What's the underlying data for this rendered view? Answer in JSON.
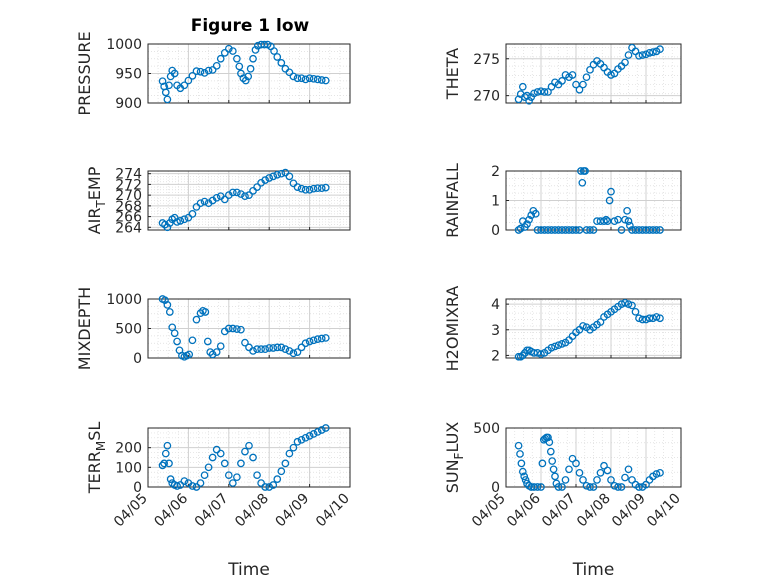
{
  "figure": {
    "title": "Figure 1 low"
  },
  "colors": {
    "marker": "#0072BD",
    "grid": "#dcdcdc",
    "axis": "#262626"
  },
  "chart_data": [
    {
      "id": "pressure",
      "type": "scatter",
      "title": "Figure 1 low",
      "ylabel": "PRESSURE",
      "ylabel_parts": [
        {
          "t": "PRESSURE"
        }
      ],
      "xlabel": "",
      "xlim": [
        0,
        5
      ],
      "ylim": [
        900,
        1000
      ],
      "yticks": [
        900,
        950,
        1000
      ],
      "ytick_labels": [
        "900",
        "950",
        "1000"
      ],
      "xtick_labels": [],
      "grid": true,
      "x": [
        0.36,
        0.4,
        0.44,
        0.48,
        0.52,
        0.56,
        0.6,
        0.66,
        0.72,
        0.8,
        0.9,
        1.0,
        1.1,
        1.2,
        1.3,
        1.4,
        1.5,
        1.6,
        1.7,
        1.8,
        1.9,
        2.0,
        2.1,
        2.2,
        2.26,
        2.3,
        2.36,
        2.42,
        2.48,
        2.54,
        2.6,
        2.66,
        2.72,
        2.8,
        2.88,
        2.96,
        3.04,
        3.12,
        3.2,
        3.3,
        3.4,
        3.5,
        3.6,
        3.7,
        3.8,
        3.9,
        4.0,
        4.1,
        4.2,
        4.3,
        4.4
      ],
      "y": [
        937,
        928,
        918,
        906,
        930,
        945,
        955,
        950,
        930,
        925,
        930,
        938,
        946,
        954,
        953,
        951,
        955,
        956,
        963,
        975,
        985,
        992,
        988,
        975,
        962,
        950,
        942,
        938,
        945,
        958,
        975,
        990,
        997,
        999,
        999,
        999,
        996,
        988,
        978,
        968,
        958,
        952,
        945,
        942,
        942,
        940,
        942,
        941,
        940,
        939,
        938
      ]
    },
    {
      "id": "theta",
      "type": "scatter",
      "ylabel": "THETA",
      "ylabel_parts": [
        {
          "t": "THETA"
        }
      ],
      "xlim": [
        0,
        5
      ],
      "ylim": [
        269,
        277
      ],
      "yticks": [
        270,
        275
      ],
      "ytick_labels": [
        "270",
        "275"
      ],
      "xtick_labels": [],
      "grid": true,
      "x": [
        0.36,
        0.42,
        0.48,
        0.54,
        0.6,
        0.66,
        0.72,
        0.8,
        0.9,
        1.0,
        1.1,
        1.2,
        1.3,
        1.4,
        1.5,
        1.6,
        1.7,
        1.8,
        1.9,
        2.0,
        2.1,
        2.2,
        2.3,
        2.4,
        2.5,
        2.6,
        2.7,
        2.8,
        2.9,
        3.0,
        3.1,
        3.2,
        3.3,
        3.4,
        3.5,
        3.6,
        3.7,
        3.8,
        3.9,
        4.0,
        4.1,
        4.2,
        4.3,
        4.4
      ],
      "y": [
        269.5,
        270.2,
        271.2,
        269.8,
        270.0,
        269.3,
        269.8,
        270.3,
        270.5,
        270.6,
        270.5,
        270.5,
        271.2,
        271.8,
        271.5,
        272.0,
        272.8,
        272.5,
        272.8,
        271.5,
        270.8,
        271.5,
        272.5,
        273.5,
        274.2,
        274.7,
        274.3,
        273.8,
        273.2,
        272.8,
        273.0,
        273.6,
        274.0,
        274.5,
        275.5,
        276.5,
        276.0,
        275.4,
        275.5,
        275.6,
        275.8,
        275.9,
        276.0,
        276.3
      ]
    },
    {
      "id": "air_temp",
      "type": "scatter",
      "ylabel": "AIR_TEMP",
      "ylabel_parts": [
        {
          "t": "AIR"
        },
        {
          "t": "T",
          "sub": true
        },
        {
          "t": "EMP"
        }
      ],
      "xlim": [
        0,
        5
      ],
      "ylim": [
        263.5,
        274.5
      ],
      "yticks": [
        264,
        266,
        268,
        270,
        272,
        274
      ],
      "ytick_labels": [
        "264",
        "266",
        "268",
        "270",
        "272",
        "274"
      ],
      "xtick_labels": [],
      "grid": true,
      "x": [
        0.36,
        0.42,
        0.48,
        0.54,
        0.6,
        0.66,
        0.72,
        0.8,
        0.9,
        1.0,
        1.1,
        1.2,
        1.3,
        1.4,
        1.5,
        1.6,
        1.7,
        1.8,
        1.9,
        2.0,
        2.1,
        2.2,
        2.3,
        2.4,
        2.5,
        2.6,
        2.7,
        2.8,
        2.9,
        3.0,
        3.1,
        3.2,
        3.3,
        3.4,
        3.5,
        3.6,
        3.7,
        3.8,
        3.9,
        4.0,
        4.1,
        4.2,
        4.3,
        4.4
      ],
      "y": [
        264.8,
        264.5,
        264.0,
        264.8,
        265.5,
        265.8,
        265.0,
        265.2,
        265.5,
        265.8,
        266.5,
        267.8,
        268.5,
        268.8,
        268.5,
        269.0,
        269.5,
        269.8,
        269.2,
        270.0,
        270.5,
        270.5,
        270.2,
        269.8,
        270.0,
        270.8,
        271.5,
        272.3,
        272.8,
        273.2,
        273.5,
        273.8,
        274.0,
        274.2,
        273.5,
        272.2,
        271.5,
        271.2,
        271.0,
        271.0,
        271.2,
        271.3,
        271.3,
        271.4
      ]
    },
    {
      "id": "rainfall",
      "type": "scatter",
      "ylabel": "RAINFALL",
      "ylabel_parts": [
        {
          "t": "RAINFALL"
        }
      ],
      "xlim": [
        0,
        5
      ],
      "ylim": [
        0,
        2
      ],
      "yticks": [
        0,
        1,
        2
      ],
      "ytick_labels": [
        "0",
        "1",
        "2"
      ],
      "xtick_labels": [],
      "grid": true,
      "x": [
        0.36,
        0.42,
        0.48,
        0.54,
        0.6,
        0.66,
        0.72,
        0.78,
        0.85,
        0.9,
        1.0,
        1.1,
        1.2,
        1.3,
        1.4,
        1.5,
        1.6,
        1.7,
        1.8,
        1.9,
        2.0,
        2.1,
        2.14,
        2.18,
        2.22,
        2.26,
        2.3,
        2.4,
        2.5,
        2.6,
        2.7,
        2.8,
        2.86,
        2.9,
        2.96,
        3.0,
        3.1,
        3.2,
        3.3,
        3.4,
        3.46,
        3.5,
        3.54,
        3.6,
        3.7,
        3.8,
        3.9,
        4.0,
        4.1,
        4.2,
        4.3,
        4.4
      ],
      "y": [
        0,
        0.05,
        0.3,
        0.1,
        0.2,
        0.35,
        0.5,
        0.65,
        0.55,
        0,
        0,
        0,
        0,
        0,
        0,
        0,
        0,
        0,
        0,
        0,
        0,
        0,
        2.0,
        1.6,
        2.0,
        2.0,
        0,
        0,
        0,
        0.3,
        0.3,
        0.3,
        0.35,
        0.3,
        1.0,
        1.3,
        0.3,
        0.35,
        0,
        0.35,
        0.65,
        0.3,
        0.15,
        0,
        0,
        0,
        0,
        0,
        0,
        0,
        0,
        0
      ]
    },
    {
      "id": "mixdepth",
      "type": "scatter",
      "ylabel": "MIXDEPTH",
      "ylabel_parts": [
        {
          "t": "MIXDEPTH"
        }
      ],
      "xlim": [
        0,
        5
      ],
      "ylim": [
        0,
        1000
      ],
      "yticks": [
        0,
        500,
        1000
      ],
      "ytick_labels": [
        "0",
        "500",
        "1000"
      ],
      "xtick_labels": [],
      "grid": true,
      "x": [
        0.36,
        0.42,
        0.48,
        0.54,
        0.6,
        0.66,
        0.72,
        0.78,
        0.84,
        0.9,
        0.96,
        1.02,
        1.1,
        1.2,
        1.3,
        1.36,
        1.42,
        1.48,
        1.54,
        1.6,
        1.7,
        1.8,
        1.9,
        2.0,
        2.1,
        2.2,
        2.3,
        2.4,
        2.5,
        2.6,
        2.7,
        2.8,
        2.9,
        3.0,
        3.1,
        3.2,
        3.3,
        3.4,
        3.5,
        3.6,
        3.7,
        3.8,
        3.9,
        4.0,
        4.1,
        4.2,
        4.3,
        4.4
      ],
      "y": [
        1000,
        980,
        900,
        780,
        520,
        420,
        280,
        130,
        40,
        20,
        40,
        60,
        300,
        650,
        760,
        800,
        780,
        280,
        100,
        60,
        100,
        200,
        450,
        500,
        500,
        490,
        480,
        260,
        180,
        120,
        150,
        150,
        150,
        170,
        170,
        180,
        180,
        150,
        120,
        80,
        100,
        180,
        250,
        280,
        300,
        320,
        330,
        340
      ]
    },
    {
      "id": "h2omixra",
      "type": "scatter",
      "ylabel": "H2OMIXRA",
      "ylabel_parts": [
        {
          "t": "H2OMIXRA"
        }
      ],
      "xlim": [
        0,
        5
      ],
      "ylim": [
        1.9,
        4.2
      ],
      "yticks": [
        2,
        3,
        4
      ],
      "ytick_labels": [
        "2",
        "3",
        "4"
      ],
      "xtick_labels": [],
      "grid": true,
      "x": [
        0.36,
        0.42,
        0.48,
        0.54,
        0.6,
        0.66,
        0.72,
        0.8,
        0.9,
        1.0,
        1.1,
        1.2,
        1.3,
        1.4,
        1.5,
        1.6,
        1.7,
        1.8,
        1.9,
        2.0,
        2.1,
        2.2,
        2.3,
        2.4,
        2.5,
        2.6,
        2.7,
        2.8,
        2.9,
        3.0,
        3.1,
        3.2,
        3.3,
        3.4,
        3.5,
        3.6,
        3.7,
        3.8,
        3.9,
        4.0,
        4.1,
        4.2,
        4.3,
        4.4
      ],
      "y": [
        1.95,
        1.95,
        2.0,
        2.1,
        2.2,
        2.2,
        2.15,
        2.1,
        2.1,
        2.05,
        2.1,
        2.2,
        2.3,
        2.35,
        2.4,
        2.45,
        2.5,
        2.6,
        2.75,
        2.9,
        3.0,
        3.15,
        3.1,
        3.0,
        3.1,
        3.2,
        3.3,
        3.5,
        3.6,
        3.7,
        3.8,
        3.9,
        4.0,
        4.05,
        4.0,
        3.95,
        3.7,
        3.45,
        3.4,
        3.4,
        3.45,
        3.45,
        3.5,
        3.45
      ]
    },
    {
      "id": "terr_msl",
      "type": "scatter",
      "ylabel": "TERR_MSL",
      "ylabel_parts": [
        {
          "t": "TERR"
        },
        {
          "t": "M",
          "sub": true
        },
        {
          "t": "SL"
        }
      ],
      "xlim": [
        0,
        5
      ],
      "ylim": [
        0,
        300
      ],
      "yticks": [
        0,
        100,
        200
      ],
      "ytick_labels": [
        "0",
        "100",
        "200"
      ],
      "xtick_labels": [
        "04/05",
        "04/06",
        "04/07",
        "04/08",
        "04/09",
        "04/10"
      ],
      "xlabel": "Time",
      "grid": true,
      "x": [
        0.36,
        0.4,
        0.44,
        0.48,
        0.52,
        0.56,
        0.6,
        0.66,
        0.72,
        0.8,
        0.9,
        1.0,
        1.1,
        1.2,
        1.3,
        1.4,
        1.5,
        1.6,
        1.7,
        1.8,
        1.9,
        2.0,
        2.1,
        2.2,
        2.3,
        2.4,
        2.5,
        2.6,
        2.7,
        2.8,
        2.9,
        3.0,
        3.1,
        3.2,
        3.3,
        3.4,
        3.5,
        3.6,
        3.7,
        3.8,
        3.9,
        4.0,
        4.1,
        4.2,
        4.3,
        4.4
      ],
      "y": [
        110,
        120,
        170,
        210,
        120,
        40,
        20,
        10,
        5,
        10,
        30,
        20,
        5,
        0,
        20,
        60,
        100,
        150,
        190,
        170,
        120,
        60,
        20,
        50,
        120,
        180,
        210,
        150,
        60,
        20,
        0,
        0,
        10,
        40,
        80,
        120,
        170,
        200,
        230,
        240,
        250,
        260,
        270,
        280,
        290,
        300
      ]
    },
    {
      "id": "sun_flux",
      "type": "scatter",
      "ylabel": "SUN_FLUX",
      "ylabel_parts": [
        {
          "t": "SUN"
        },
        {
          "t": "F",
          "sub": true
        },
        {
          "t": "LUX"
        }
      ],
      "xlim": [
        0,
        5
      ],
      "ylim": [
        0,
        500
      ],
      "yticks": [
        0,
        500
      ],
      "ytick_labels": [
        "0",
        "500"
      ],
      "xtick_labels": [
        "04/05",
        "04/06",
        "04/07",
        "04/08",
        "04/09",
        "04/10"
      ],
      "xlabel": "Time",
      "grid": true,
      "x": [
        0.36,
        0.4,
        0.44,
        0.48,
        0.52,
        0.56,
        0.6,
        0.66,
        0.72,
        0.8,
        0.9,
        1.0,
        1.04,
        1.08,
        1.12,
        1.16,
        1.2,
        1.24,
        1.28,
        1.32,
        1.36,
        1.4,
        1.44,
        1.5,
        1.6,
        1.7,
        1.8,
        1.9,
        2.0,
        2.1,
        2.2,
        2.3,
        2.4,
        2.5,
        2.6,
        2.7,
        2.8,
        2.9,
        3.0,
        3.1,
        3.2,
        3.3,
        3.4,
        3.5,
        3.6,
        3.7,
        3.8,
        3.9,
        4.0,
        4.1,
        4.2,
        4.3,
        4.4
      ],
      "y": [
        350,
        280,
        200,
        130,
        90,
        60,
        30,
        10,
        0,
        0,
        0,
        0,
        200,
        400,
        410,
        420,
        420,
        380,
        300,
        220,
        150,
        90,
        30,
        0,
        0,
        60,
        150,
        240,
        200,
        120,
        60,
        10,
        0,
        0,
        60,
        120,
        180,
        140,
        60,
        10,
        0,
        0,
        80,
        150,
        60,
        20,
        0,
        0,
        20,
        60,
        90,
        110,
        120
      ]
    }
  ]
}
